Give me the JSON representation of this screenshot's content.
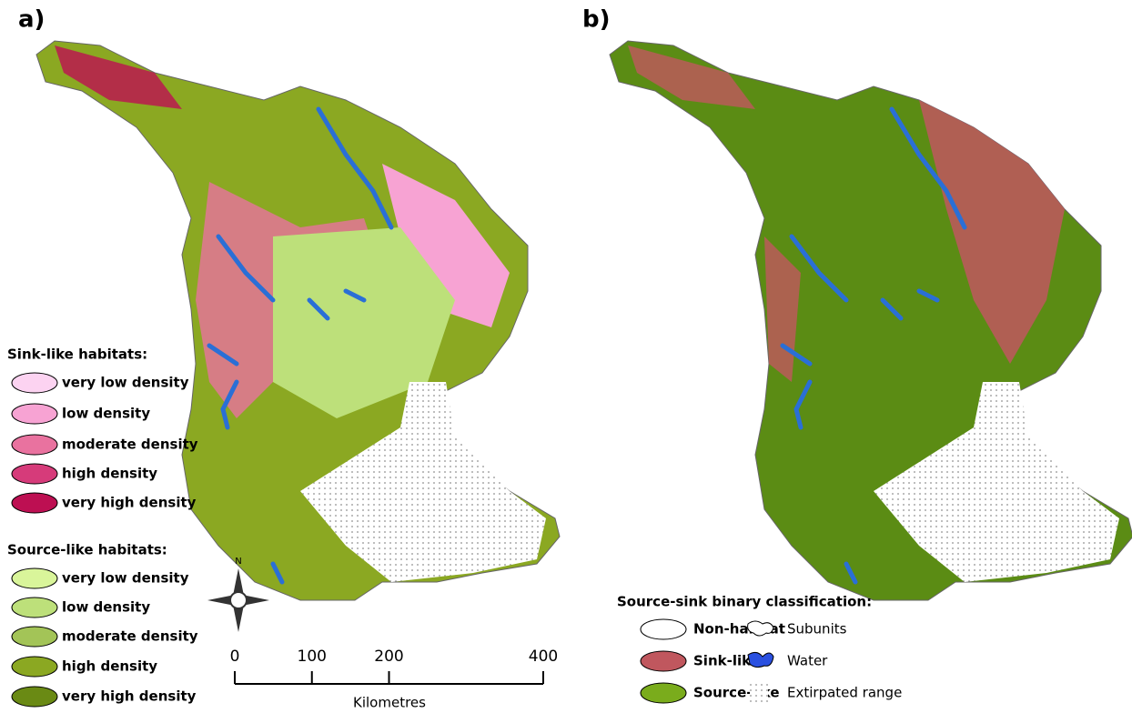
{
  "panels": [
    {
      "label": "a)"
    },
    {
      "label": "b)"
    }
  ],
  "legend_a": {
    "sink_title": "Sink-like habitats:",
    "sink_items": [
      {
        "label": "very low density",
        "color": "#fcd3f1"
      },
      {
        "label": "low density",
        "color": "#f7a3d3"
      },
      {
        "label": "moderate density",
        "color": "#e9729f"
      },
      {
        "label": "high density",
        "color": "#d63b7a"
      },
      {
        "label": "very high density",
        "color": "#bd0f52"
      }
    ],
    "source_title": "Source-like habitats:",
    "source_items": [
      {
        "label": "very low density",
        "color": "#d9f59a"
      },
      {
        "label": "low density",
        "color": "#bde07a"
      },
      {
        "label": "moderate density",
        "color": "#a3c457"
      },
      {
        "label": "high density",
        "color": "#8ba822"
      },
      {
        "label": "very high density",
        "color": "#6a8a14"
      }
    ]
  },
  "compass": {
    "label": "N"
  },
  "scale": {
    "ticks": [
      0,
      100,
      200,
      400
    ],
    "unit": "Kilometres"
  },
  "legend_b": {
    "title": "Source-sink binary classification:",
    "items": [
      {
        "label": "Non-habitat",
        "color": "#ffffff"
      },
      {
        "label": "Sink-like",
        "color": "#c0575e"
      },
      {
        "label": "Source-like",
        "color": "#7aac1c"
      }
    ],
    "symbols": [
      {
        "label": "Subunits"
      },
      {
        "label": "Water"
      },
      {
        "label": "Extirpated range"
      }
    ]
  }
}
